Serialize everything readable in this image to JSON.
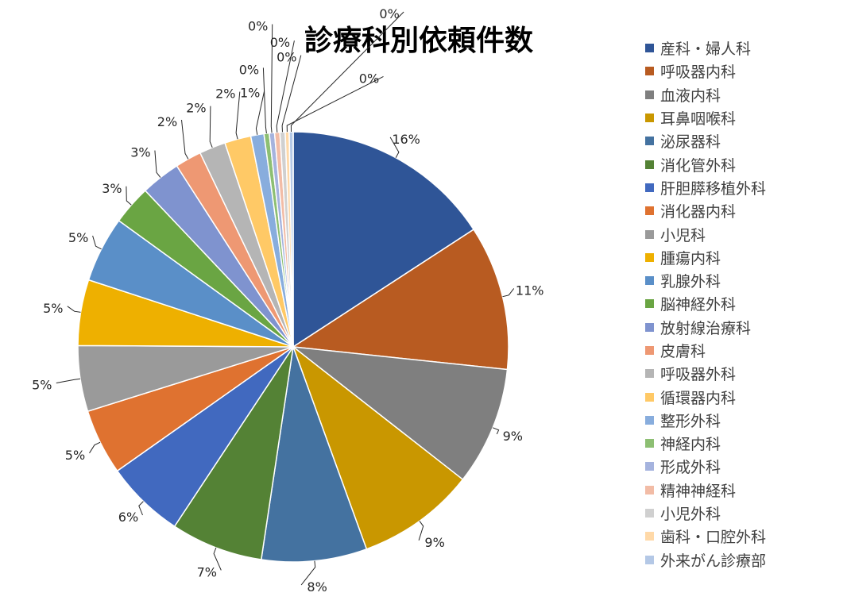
{
  "chart_data": {
    "type": "pie",
    "title": "診療科別依頼件数",
    "legend_position": "right",
    "slices": [
      {
        "name": "産科・婦人科",
        "value": 16,
        "label": "16%",
        "color": "#2F5597"
      },
      {
        "name": "呼吸器内科",
        "value": 11,
        "label": "11%",
        "color": "#B85B21"
      },
      {
        "name": "血液内科",
        "value": 9,
        "label": "9%",
        "color": "#7F7F7F"
      },
      {
        "name": "耳鼻咽喉科",
        "value": 9,
        "label": "9%",
        "color": "#C99700"
      },
      {
        "name": "泌尿器科",
        "value": 8,
        "label": "8%",
        "color": "#4472A0"
      },
      {
        "name": "消化管外科",
        "value": 7,
        "label": "7%",
        "color": "#548235"
      },
      {
        "name": "肝胆膵移植外科",
        "value": 6,
        "label": "6%",
        "color": "#4169BF"
      },
      {
        "name": "消化器内科",
        "value": 5,
        "label": "5%",
        "color": "#DF7230"
      },
      {
        "name": "小児科",
        "value": 5,
        "label": "5%",
        "color": "#9A9A9A"
      },
      {
        "name": "腫瘍内科",
        "value": 5,
        "label": "5%",
        "color": "#EEB000"
      },
      {
        "name": "乳腺外科",
        "value": 5,
        "label": "5%",
        "color": "#5A8FC8"
      },
      {
        "name": "脳神経外科",
        "value": 3,
        "label": "3%",
        "color": "#6AA543"
      },
      {
        "name": "放射線治療科",
        "value": 3,
        "label": "3%",
        "color": "#7F93CF"
      },
      {
        "name": "皮膚科",
        "value": 2,
        "label": "2%",
        "color": "#EE9873"
      },
      {
        "name": "呼吸器外科",
        "value": 2,
        "label": "2%",
        "color": "#B5B5B5"
      },
      {
        "name": "循環器内科",
        "value": 2,
        "label": "2%",
        "color": "#FFC966"
      },
      {
        "name": "整形外科",
        "value": 1,
        "label": "1%",
        "color": "#88ADDD"
      },
      {
        "name": "神経内科",
        "value": 0.4,
        "label": "0%",
        "color": "#8DBF73"
      },
      {
        "name": "形成外科",
        "value": 0.4,
        "label": "0%",
        "color": "#A5B3DE"
      },
      {
        "name": "精神神経科",
        "value": 0.4,
        "label": "0%",
        "color": "#F2BCA6"
      },
      {
        "name": "小児外科",
        "value": 0.4,
        "label": "0%",
        "color": "#D0D0D0"
      },
      {
        "name": "歯科・口腔外科",
        "value": 0.3,
        "label": "0%",
        "color": "#FFD9A8"
      },
      {
        "name": "外来がん診療部",
        "value": 0.3,
        "label": "0%",
        "color": "#B4C8E6"
      }
    ]
  }
}
